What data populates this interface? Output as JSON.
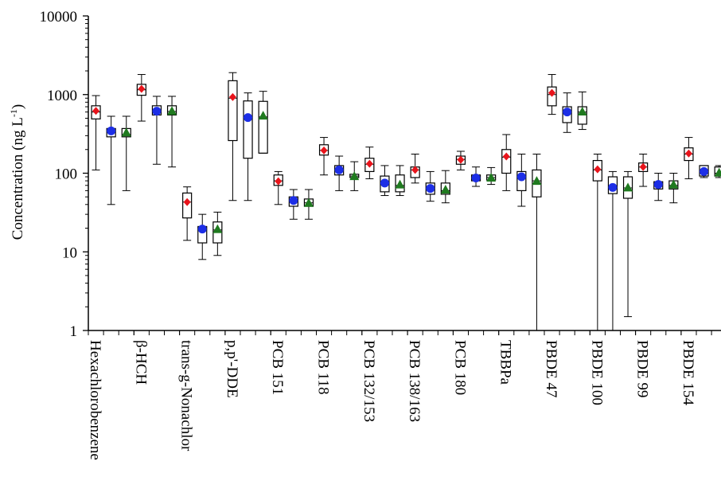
{
  "chart_data": {
    "type": "box",
    "title": "",
    "ylabel": "Concentration (ng L",
    "ylabel_sup": "-1",
    "ylabel_close": ")",
    "yscale": "log",
    "ylim": [
      1,
      10000
    ],
    "yticks": [
      {
        "value": 1,
        "label": "1"
      },
      {
        "value": 10,
        "label": "10"
      },
      {
        "value": 100,
        "label": "100"
      },
      {
        "value": 1000,
        "label": "1000"
      },
      {
        "value": 10000,
        "label": "10000"
      }
    ],
    "grid": false,
    "legend": "none",
    "marker_styles": {
      "red": {
        "shape": "diamond",
        "color": "#e8141b"
      },
      "blue": {
        "shape": "circle",
        "color": "#1c2ee6"
      },
      "green": {
        "shape": "triangle",
        "color": "#1f7a1f"
      }
    },
    "categories": [
      {
        "label": "Hexachlorobenzene",
        "boxes": [
          {
            "marker": "red",
            "whisker_low": 110,
            "q1": 490,
            "median": 600,
            "q3": 720,
            "whisker_high": 970,
            "mean": 620
          },
          {
            "marker": "blue",
            "whisker_low": 40,
            "q1": 290,
            "median": 330,
            "q3": 370,
            "whisker_high": 530,
            "mean": 345
          },
          {
            "marker": "green",
            "whisker_low": 60,
            "q1": 290,
            "median": 310,
            "q3": 370,
            "whisker_high": 530,
            "mean": 330
          }
        ]
      },
      {
        "label": "β-HCH",
        "boxes": [
          {
            "marker": "red",
            "whisker_low": 460,
            "q1": 980,
            "median": 1150,
            "q3": 1350,
            "whisker_high": 1800,
            "mean": 1180
          },
          {
            "marker": "blue",
            "whisker_low": 130,
            "q1": 550,
            "median": 610,
            "q3": 720,
            "whisker_high": 950,
            "mean": 615
          },
          {
            "marker": "green",
            "whisker_low": 120,
            "q1": 550,
            "median": 610,
            "q3": 720,
            "whisker_high": 950,
            "mean": 620
          }
        ]
      },
      {
        "label": "trans-g-Nonachlor",
        "boxes": [
          {
            "marker": "red",
            "whisker_low": 14,
            "q1": 27,
            "median": 43,
            "q3": 56,
            "whisker_high": 67,
            "mean": 43
          },
          {
            "marker": "blue",
            "whisker_low": 8,
            "q1": 13,
            "median": 20,
            "q3": 21,
            "whisker_high": 30,
            "mean": 19.5
          },
          {
            "marker": "green",
            "whisker_low": 9,
            "q1": 13,
            "median": 19,
            "q3": 24,
            "whisker_high": 32,
            "mean": 19.5
          }
        ]
      },
      {
        "label": "p,p'-DDE",
        "boxes": [
          {
            "marker": "red",
            "whisker_low": 45,
            "q1": 260,
            "median": 900,
            "q3": 1500,
            "whisker_high": 1900,
            "mean": 930
          },
          {
            "marker": "blue",
            "whisker_low": 45,
            "q1": 155,
            "median": 500,
            "q3": 830,
            "whisker_high": 1050,
            "mean": 510
          },
          {
            "marker": "green",
            "whisker_low": 180,
            "q1": 180,
            "median": 520,
            "q3": 820,
            "whisker_high": 1100,
            "mean": 540
          }
        ]
      },
      {
        "label": "PCB 151",
        "boxes": [
          {
            "marker": "red",
            "whisker_low": 40,
            "q1": 70,
            "median": 80,
            "q3": 95,
            "whisker_high": 105,
            "mean": 79
          },
          {
            "marker": "blue",
            "whisker_low": 26,
            "q1": 38,
            "median": 45,
            "q3": 50,
            "whisker_high": 62,
            "mean": 45
          },
          {
            "marker": "green",
            "whisker_low": 26,
            "q1": 38,
            "median": 42,
            "q3": 47,
            "whisker_high": 62,
            "mean": 42
          }
        ]
      },
      {
        "label": "PCB 118",
        "boxes": [
          {
            "marker": "red",
            "whisker_low": 95,
            "q1": 170,
            "median": 195,
            "q3": 230,
            "whisker_high": 285,
            "mean": 195
          },
          {
            "marker": "blue",
            "whisker_low": 60,
            "q1": 95,
            "median": 110,
            "q3": 125,
            "whisker_high": 165,
            "mean": 110
          },
          {
            "marker": "green",
            "whisker_low": 60,
            "q1": 88,
            "median": 92,
            "q3": 97,
            "whisker_high": 140,
            "mean": 92
          }
        ]
      },
      {
        "label": "PCB 132/153",
        "boxes": [
          {
            "marker": "red",
            "whisker_low": 85,
            "q1": 105,
            "median": 130,
            "q3": 155,
            "whisker_high": 215,
            "mean": 132
          },
          {
            "marker": "blue",
            "whisker_low": 52,
            "q1": 58,
            "median": 75,
            "q3": 92,
            "whisker_high": 125,
            "mean": 75
          },
          {
            "marker": "green",
            "whisker_low": 52,
            "q1": 58,
            "median": 70,
            "q3": 95,
            "whisker_high": 125,
            "mean": 72
          }
        ]
      },
      {
        "label": "PCB 138/163",
        "boxes": [
          {
            "marker": "red",
            "whisker_low": 75,
            "q1": 88,
            "median": 110,
            "q3": 120,
            "whisker_high": 175,
            "mean": 110
          },
          {
            "marker": "blue",
            "whisker_low": 44,
            "q1": 54,
            "median": 65,
            "q3": 75,
            "whisker_high": 105,
            "mean": 64
          },
          {
            "marker": "green",
            "whisker_low": 42,
            "q1": 54,
            "median": 60,
            "q3": 75,
            "whisker_high": 108,
            "mean": 62
          }
        ]
      },
      {
        "label": "PCB 180",
        "boxes": [
          {
            "marker": "red",
            "whisker_low": 110,
            "q1": 130,
            "median": 150,
            "q3": 165,
            "whisker_high": 190,
            "mean": 148
          },
          {
            "marker": "blue",
            "whisker_low": 68,
            "q1": 80,
            "median": 87,
            "q3": 95,
            "whisker_high": 120,
            "mean": 87
          },
          {
            "marker": "green",
            "whisker_low": 72,
            "q1": 82,
            "median": 88,
            "q3": 95,
            "whisker_high": 118,
            "mean": 88
          }
        ]
      },
      {
        "label": "TBBPa",
        "boxes": [
          {
            "marker": "red",
            "whisker_low": 60,
            "q1": 100,
            "median": 160,
            "q3": 200,
            "whisker_high": 310,
            "mean": 163
          },
          {
            "marker": "blue",
            "whisker_low": 38,
            "q1": 60,
            "median": 90,
            "q3": 105,
            "whisker_high": 175,
            "mean": 90
          },
          {
            "marker": "green",
            "whisker_low": 1,
            "q1": 50,
            "median": 80,
            "q3": 110,
            "whisker_high": 175,
            "mean": 80
          }
        ]
      },
      {
        "label": "PBDE 47",
        "boxes": [
          {
            "marker": "red",
            "whisker_low": 560,
            "q1": 720,
            "median": 1000,
            "q3": 1250,
            "whisker_high": 1800,
            "mean": 1050
          },
          {
            "marker": "blue",
            "whisker_low": 330,
            "q1": 440,
            "median": 600,
            "q3": 700,
            "whisker_high": 1050,
            "mean": 600
          },
          {
            "marker": "green",
            "whisker_low": 360,
            "q1": 420,
            "median": 600,
            "q3": 700,
            "whisker_high": 1080,
            "mean": 610
          }
        ]
      },
      {
        "label": "PBDE 100",
        "boxes": [
          {
            "marker": "red",
            "whisker_low": 1,
            "q1": 80,
            "median": 110,
            "q3": 145,
            "whisker_high": 175,
            "mean": 112
          },
          {
            "marker": "blue",
            "whisker_low": 1,
            "q1": 55,
            "median": 65,
            "q3": 90,
            "whisker_high": 105,
            "mean": 66
          },
          {
            "marker": "green",
            "whisker_low": 1.5,
            "q1": 48,
            "median": 65,
            "q3": 90,
            "whisker_high": 105,
            "mean": 66
          }
        ]
      },
      {
        "label": "PBDE 99",
        "boxes": [
          {
            "marker": "red",
            "whisker_low": 68,
            "q1": 105,
            "median": 120,
            "q3": 135,
            "whisker_high": 175,
            "mean": 120
          },
          {
            "marker": "blue",
            "whisker_low": 45,
            "q1": 63,
            "median": 72,
            "q3": 78,
            "whisker_high": 100,
            "mean": 72
          },
          {
            "marker": "green",
            "whisker_low": 42,
            "q1": 63,
            "median": 70,
            "q3": 80,
            "whisker_high": 100,
            "mean": 72
          }
        ]
      },
      {
        "label": "PBDE 154",
        "boxes": [
          {
            "marker": "red",
            "whisker_low": 85,
            "q1": 145,
            "median": 175,
            "q3": 210,
            "whisker_high": 285,
            "mean": 178
          },
          {
            "marker": "blue",
            "whisker_low": 88,
            "q1": 92,
            "median": 105,
            "q3": 125,
            "whisker_high": 125,
            "mean": 105
          },
          {
            "marker": "green",
            "whisker_low": 88,
            "q1": 92,
            "median": 100,
            "q3": 120,
            "whisker_high": 125,
            "mean": 102
          }
        ]
      }
    ]
  }
}
